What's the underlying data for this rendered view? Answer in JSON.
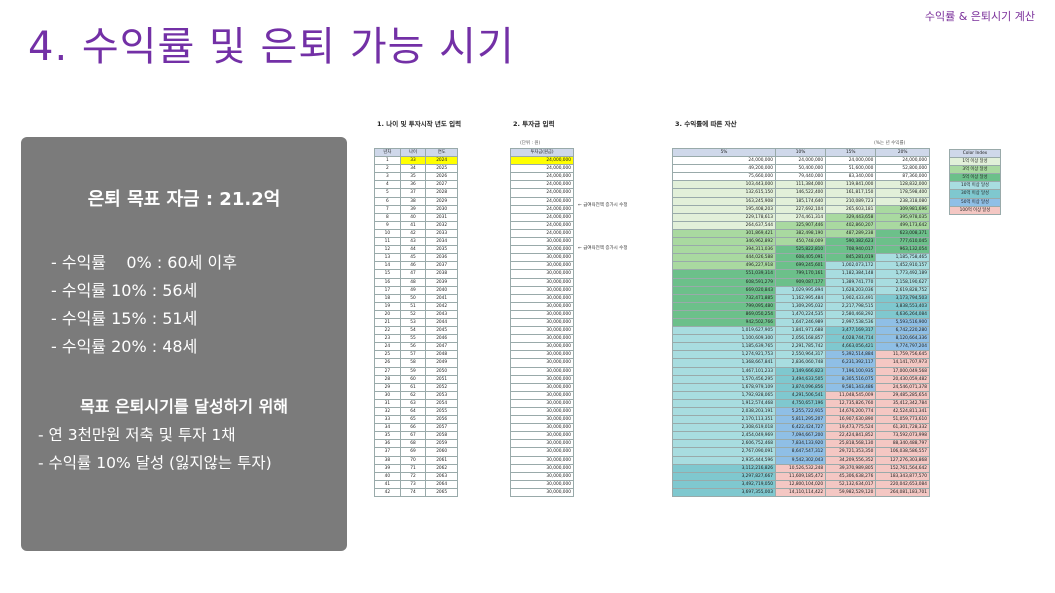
{
  "header_tag": "수익률 & 은퇴시기 계산",
  "title": "4. 수익률 및 은퇴 가능 시기",
  "panel": {
    "goal": "은퇴 목표 자금 : 21.2억",
    "rates": [
      "- 수익률    0% : 60세 이후",
      "- 수익률 10% : 56세",
      "- 수익률 15% : 51세",
      "- 수익률 20% : 48세"
    ],
    "plan_title": "목표 은퇴시기를 달성하기 위해",
    "plan_items": [
      "- 연 3천만원 저축 및 투자 1채",
      "- 수익률 10% 달성 (잃지않는 투자)"
    ]
  },
  "sheet": {
    "sec1": "1. 나이 및 투자시작 년도 입력",
    "sec2": "2. 투자금 입력",
    "sec3": "3. 수익률에 따른 자산",
    "unit_invest": "(단위 : 원)",
    "unit_assets": "(%는 년 수익률)",
    "left_headers": [
      "년차",
      "나이",
      "연도"
    ],
    "invest_header": "투자금(원금)",
    "asset_headers": [
      "5%",
      "10%",
      "15%",
      "20%"
    ],
    "note1": "← 급여육전액 증가시 수정",
    "note2": "← 급여육전액 증가시 수정",
    "legend_title": "Color Index",
    "legend": [
      {
        "label": "1억 이상 달성",
        "color": "#e2f0d9"
      },
      {
        "label": "3억 이상 달성",
        "color": "#a9d9a0"
      },
      {
        "label": "5억 이상 달성",
        "color": "#6cc08a"
      },
      {
        "label": "10억 이상 달성",
        "color": "#a8dde0"
      },
      {
        "label": "30억 이상 달성",
        "color": "#7fc8cf"
      },
      {
        "label": "50억 이상 달성",
        "color": "#8fbfe6"
      },
      {
        "label": "100억 이상 달성",
        "color": "#f4c7c3"
      }
    ],
    "rows": [
      [
        "1",
        "33",
        "2024",
        "24,000,000",
        "24,000,000",
        "24,000,000",
        "24,000,000",
        "24,000,000"
      ],
      [
        "2",
        "34",
        "2025",
        "24,000,000",
        "49,200,000",
        "50,400,000",
        "51,600,000",
        "52,800,000"
      ],
      [
        "3",
        "35",
        "2026",
        "24,000,000",
        "75,660,000",
        "79,440,000",
        "83,340,000",
        "87,360,000"
      ],
      [
        "4",
        "36",
        "2027",
        "24,000,000",
        "103,443,000",
        "111,384,000",
        "119,841,000",
        "128,832,000"
      ],
      [
        "5",
        "37",
        "2028",
        "24,000,000",
        "132,615,150",
        "146,522,400",
        "161,817,150",
        "178,598,400"
      ],
      [
        "6",
        "38",
        "2029",
        "24,000,000",
        "163,245,908",
        "185,174,640",
        "210,089,723",
        "238,318,080"
      ],
      [
        "7",
        "39",
        "2030",
        "24,000,000",
        "195,408,203",
        "227,692,104",
        "265,603,181",
        "309,981,696"
      ],
      [
        "8",
        "40",
        "2031",
        "24,000,000",
        "229,178,613",
        "274,461,314",
        "329,443,658",
        "395,978,035"
      ],
      [
        "9",
        "41",
        "2032",
        "24,000,000",
        "264,637,544",
        "325,907,446",
        "402,860,207",
        "499,173,642"
      ],
      [
        "10",
        "42",
        "2033",
        "24,000,000",
        "301,869,421",
        "382,498,190",
        "487,289,238",
        "623,008,371"
      ],
      [
        "11",
        "43",
        "2034",
        "30,000,000",
        "346,962,892",
        "450,748,009",
        "590,382,623",
        "777,610,045"
      ],
      [
        "12",
        "44",
        "2035",
        "30,000,000",
        "394,311,036",
        "525,822,810",
        "708,940,017",
        "963,132,054"
      ],
      [
        "13",
        "45",
        "2036",
        "30,000,000",
        "444,026,588",
        "608,405,091",
        "845,281,019",
        "1,185,758,465"
      ],
      [
        "14",
        "46",
        "2037",
        "30,000,000",
        "496,227,918",
        "699,245,601",
        "1,002,073,172",
        "1,452,910,157"
      ],
      [
        "15",
        "47",
        "2038",
        "30,000,000",
        "551,039,314",
        "799,170,161",
        "1,182,384,148",
        "1,773,492,189"
      ],
      [
        "16",
        "48",
        "2039",
        "30,000,000",
        "608,591,279",
        "909,087,177",
        "1,389,741,770",
        "2,158,190,627"
      ],
      [
        "17",
        "49",
        "2040",
        "30,000,000",
        "669,020,843",
        "1,029,995,894",
        "1,628,203,036",
        "2,619,828,752"
      ],
      [
        "18",
        "50",
        "2041",
        "30,000,000",
        "732,471,885",
        "1,162,995,484",
        "1,902,433,491",
        "3,173,794,503"
      ],
      [
        "19",
        "51",
        "2042",
        "30,000,000",
        "799,095,480",
        "1,309,295,032",
        "2,217,798,515",
        "3,838,553,403"
      ],
      [
        "20",
        "52",
        "2043",
        "30,000,000",
        "869,050,254",
        "1,470,224,535",
        "2,580,468,292",
        "4,636,264,084"
      ],
      [
        "21",
        "53",
        "2044",
        "30,000,000",
        "942,502,766",
        "1,647,246,989",
        "2,997,538,536",
        "5,593,516,900"
      ],
      [
        "22",
        "54",
        "2045",
        "30,000,000",
        "1,019,627,905",
        "1,841,971,688",
        "3,477,169,317",
        "6,742,220,280"
      ],
      [
        "23",
        "55",
        "2046",
        "30,000,000",
        "1,100,609,300",
        "2,056,168,857",
        "4,028,744,714",
        "8,120,664,336"
      ],
      [
        "24",
        "56",
        "2047",
        "30,000,000",
        "1,185,639,765",
        "2,291,785,742",
        "4,663,056,421",
        "9,774,797,204"
      ],
      [
        "25",
        "57",
        "2048",
        "30,000,000",
        "1,274,921,753",
        "2,550,964,317",
        "5,392,514,884",
        "11,759,756,645"
      ],
      [
        "26",
        "58",
        "2049",
        "30,000,000",
        "1,368,667,841",
        "2,836,060,748",
        "6,231,392,117",
        "14,141,707,973"
      ],
      [
        "27",
        "59",
        "2050",
        "30,000,000",
        "1,467,101,233",
        "3,149,666,823",
        "7,196,100,935",
        "17,000,049,568"
      ],
      [
        "28",
        "60",
        "2051",
        "30,000,000",
        "1,570,456,295",
        "3,494,633,505",
        "8,305,516,075",
        "20,430,059,482"
      ],
      [
        "29",
        "61",
        "2052",
        "30,000,000",
        "1,678,979,109",
        "3,874,096,856",
        "9,581,343,486",
        "24,546,071,378"
      ],
      [
        "30",
        "62",
        "2053",
        "30,000,000",
        "1,792,928,065",
        "4,291,506,541",
        "11,048,545,009",
        "29,485,285,654"
      ],
      [
        "31",
        "63",
        "2054",
        "30,000,000",
        "1,912,574,468",
        "4,750,657,196",
        "12,735,826,760",
        "35,412,342,784"
      ],
      [
        "32",
        "64",
        "2055",
        "30,000,000",
        "2,038,203,191",
        "5,255,722,915",
        "14,676,200,774",
        "42,524,811,341"
      ],
      [
        "33",
        "65",
        "2056",
        "30,000,000",
        "2,170,113,351",
        "5,811,295,207",
        "16,907,630,890",
        "51,059,773,610"
      ],
      [
        "34",
        "66",
        "2057",
        "30,000,000",
        "2,308,619,018",
        "6,422,424,727",
        "19,473,775,524",
        "61,301,728,332"
      ],
      [
        "35",
        "67",
        "2058",
        "30,000,000",
        "2,454,049,969",
        "7,094,667,200",
        "22,424,841,852",
        "73,592,073,998"
      ],
      [
        "36",
        "68",
        "2059",
        "30,000,000",
        "2,606,752,468",
        "7,834,133,920",
        "25,818,568,130",
        "88,340,488,797"
      ],
      [
        "37",
        "69",
        "2060",
        "30,000,000",
        "2,767,090,091",
        "8,647,547,312",
        "29,721,353,350",
        "106,038,586,557"
      ],
      [
        "38",
        "70",
        "2061",
        "30,000,000",
        "2,935,444,596",
        "9,542,302,043",
        "34,209,556,352",
        "127,276,303,868"
      ],
      [
        "39",
        "71",
        "2062",
        "30,000,000",
        "3,112,216,826",
        "10,526,532,248",
        "39,370,989,805",
        "152,761,564,642"
      ],
      [
        "40",
        "72",
        "2063",
        "30,000,000",
        "3,297,827,667",
        "11,609,185,472",
        "45,306,638,276",
        "183,343,877,570"
      ],
      [
        "41",
        "73",
        "2064",
        "30,000,000",
        "3,492,719,050",
        "12,800,104,020",
        "52,132,634,017",
        "220,042,653,084"
      ],
      [
        "42",
        "74",
        "2065",
        "30,000,000",
        "3,697,355,003",
        "14,110,114,422",
        "59,982,529,120",
        "264,081,183,701"
      ]
    ]
  }
}
